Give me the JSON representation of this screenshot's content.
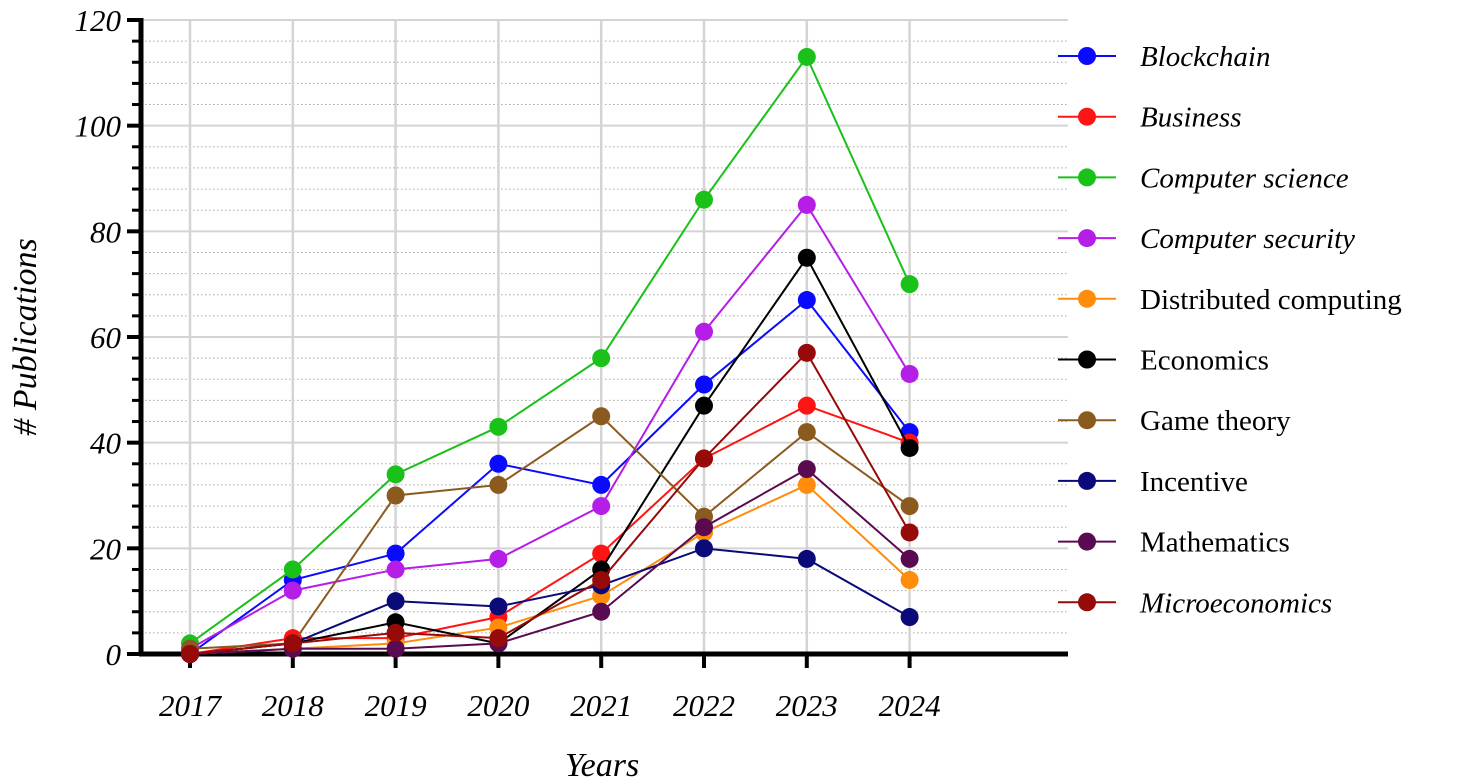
{
  "chart_data": {
    "type": "line",
    "title": "",
    "xlabel": "Years",
    "ylabel": "# Publications",
    "categories": [
      "2017",
      "2018",
      "2019",
      "2020",
      "2021",
      "2022",
      "2023",
      "2024"
    ],
    "ylim": [
      0,
      120
    ],
    "yticks": [
      "0",
      "20",
      "40",
      "60",
      "80",
      "100",
      "120"
    ],
    "grid": true,
    "legend_position": "right",
    "series": [
      {
        "name": "Blockchain",
        "color": "#0a0aff",
        "italic": true,
        "values": [
          0,
          14,
          19,
          36,
          32,
          51,
          67,
          42
        ]
      },
      {
        "name": "Business",
        "color": "#ff1414",
        "italic": true,
        "values": [
          0,
          3,
          3,
          7,
          19,
          37,
          47,
          40
        ]
      },
      {
        "name": "Computer science",
        "color": "#19c119",
        "italic": true,
        "values": [
          2,
          16,
          34,
          43,
          56,
          86,
          113,
          70
        ]
      },
      {
        "name": "Computer security",
        "color": "#b41ee6",
        "italic": true,
        "values": [
          1,
          12,
          16,
          18,
          28,
          61,
          85,
          53
        ]
      },
      {
        "name": "Distributed computing",
        "color": "#ff8c0a",
        "italic": false,
        "values": [
          0,
          1,
          2,
          5,
          11,
          23,
          32,
          14
        ]
      },
      {
        "name": "Economics",
        "color": "#000000",
        "italic": false,
        "values": [
          0,
          2,
          6,
          2,
          16,
          47,
          75,
          39
        ]
      },
      {
        "name": "Game theory",
        "color": "#8b5a1e",
        "italic": false,
        "values": [
          1,
          2,
          30,
          32,
          45,
          26,
          42,
          28
        ]
      },
      {
        "name": "Incentive",
        "color": "#0a0a78",
        "italic": false,
        "values": [
          0,
          2,
          10,
          9,
          13,
          20,
          18,
          7
        ]
      },
      {
        "name": "Mathematics",
        "color": "#5a0a50",
        "italic": false,
        "values": [
          0,
          1,
          1,
          2,
          8,
          24,
          35,
          18
        ]
      },
      {
        "name": "Microeconomics",
        "color": "#960a0a",
        "italic": true,
        "values": [
          0,
          2,
          4,
          3,
          14,
          37,
          57,
          23
        ]
      }
    ]
  }
}
